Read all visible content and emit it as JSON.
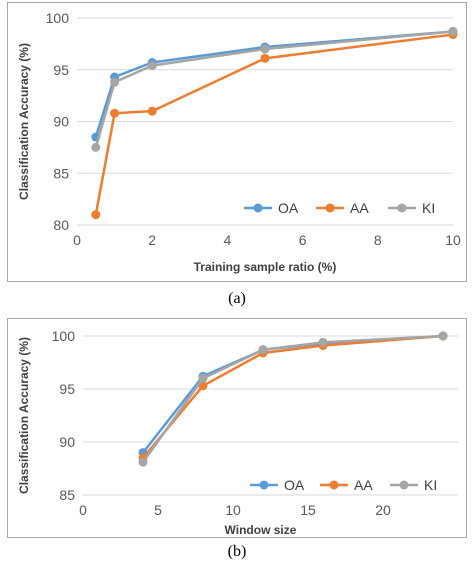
{
  "chart_data": [
    {
      "type": "line",
      "xlabel": "Training sample ratio (%)",
      "ylabel": "Classification Accuracy (%)",
      "xlim": [
        0,
        10
      ],
      "ylim": [
        80,
        100
      ],
      "x_ticks": [
        "0",
        "2",
        "4",
        "6",
        "8",
        "10"
      ],
      "y_ticks": [
        "80",
        "85",
        "90",
        "95",
        "100"
      ],
      "grid": "horizontal",
      "legend": "bottom-right",
      "x": [
        0.5,
        1,
        2,
        5,
        10
      ],
      "series": [
        {
          "name": "OA",
          "color": "#5b9bd5",
          "values": [
            88.5,
            94.3,
            95.7,
            97.2,
            98.7
          ]
        },
        {
          "name": "AA",
          "color": "#ed7d31",
          "values": [
            81.0,
            90.8,
            91.0,
            96.1,
            98.4
          ]
        },
        {
          "name": "KI",
          "color": "#a5a5a5",
          "values": [
            87.5,
            93.8,
            95.4,
            97.0,
            98.7
          ]
        }
      ],
      "caption": "(a)"
    },
    {
      "type": "line",
      "xlabel": "Window size",
      "ylabel": "Classification Accuracy (%)",
      "xlim": [
        0,
        25
      ],
      "ylim": [
        85,
        100
      ],
      "x_ticks": [
        "0",
        "5",
        "10",
        "15",
        "20"
      ],
      "y_ticks": [
        "85",
        "90",
        "95",
        "100"
      ],
      "grid": "horizontal",
      "legend": "bottom-right",
      "x": [
        4,
        8,
        12,
        16,
        24
      ],
      "series": [
        {
          "name": "OA",
          "color": "#5b9bd5",
          "values": [
            89.0,
            96.2,
            98.7,
            99.3,
            100.0
          ]
        },
        {
          "name": "AA",
          "color": "#ed7d31",
          "values": [
            88.5,
            95.3,
            98.4,
            99.1,
            100.0
          ]
        },
        {
          "name": "KI",
          "color": "#a5a5a5",
          "values": [
            88.1,
            96.0,
            98.7,
            99.4,
            100.0
          ]
        }
      ],
      "caption": "(b)"
    }
  ]
}
